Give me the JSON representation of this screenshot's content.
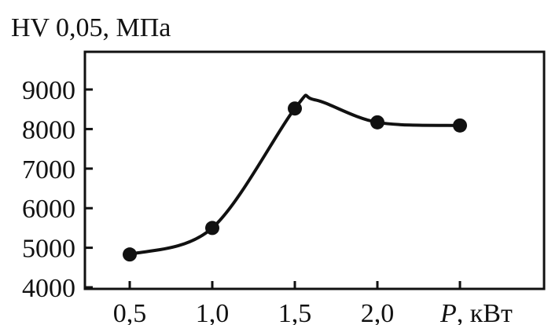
{
  "chart_data": {
    "type": "line",
    "ylabel": "HV 0,05, МПа",
    "xlabel_var": "P",
    "xlabel_unit": ", кВт",
    "x_ticks": [
      "0,5",
      "1,0",
      "1,5",
      "2,0"
    ],
    "y_ticks": [
      "4000",
      "5000",
      "6000",
      "7000",
      "8000",
      "9000"
    ],
    "xlim": [
      0.0,
      3.0
    ],
    "ylim": [
      4000,
      10000
    ],
    "x": [
      0.5,
      1.0,
      1.5,
      2.0,
      2.5
    ],
    "y": [
      4830,
      5500,
      8520,
      8170,
      8090
    ],
    "smooth_peak": {
      "x": 1.62,
      "y": 8740
    },
    "grid": false,
    "line_color": "#111111",
    "marker_color": "#111111"
  }
}
